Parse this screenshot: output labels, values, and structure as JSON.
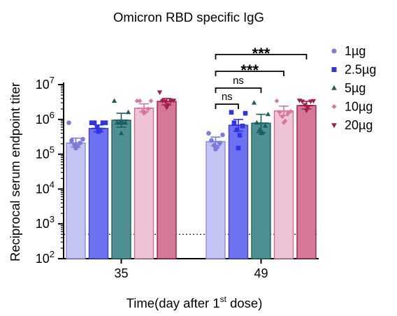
{
  "chart_data": {
    "type": "bar",
    "title": "Omicron RBD specific IgG",
    "xlabel": "Time(day after 1",
    "xlabel_sup": "st",
    "xlabel_tail": " dose)",
    "ylabel": "Reciprocal serum endpoint titer",
    "yscale": "log",
    "ylim": [
      100,
      10000000
    ],
    "yticks": [
      {
        "value": 100,
        "base": "10",
        "exp": "2"
      },
      {
        "value": 1000,
        "base": "10",
        "exp": "3"
      },
      {
        "value": 10000,
        "base": "10",
        "exp": "4"
      },
      {
        "value": 100000,
        "base": "10",
        "exp": "5"
      },
      {
        "value": 1000000,
        "base": "10",
        "exp": "6"
      },
      {
        "value": 10000000,
        "base": "10",
        "exp": "7"
      }
    ],
    "categories": [
      "35",
      "49"
    ],
    "detection_limit": 500,
    "legend_position": "right",
    "series": [
      {
        "name": "1µg",
        "marker": "circle",
        "fill": "#c3c3f4",
        "edge": "#8a8ae6",
        "dot": "#7b7bdc",
        "values": [
          210000,
          230000
        ],
        "err": [
          [
            160000,
            290000
          ],
          [
            175000,
            310000
          ]
        ],
        "points": [
          [
            800000,
            270000,
            250000,
            210000,
            190000,
            170000,
            150000
          ],
          [
            400000,
            360000,
            250000,
            210000,
            180000,
            160000,
            140000
          ]
        ]
      },
      {
        "name": "2.5µg",
        "marker": "square",
        "fill": "#6e72f0",
        "edge": "#3a3ee4",
        "dot": "#3034e6",
        "values": [
          550000,
          680000
        ],
        "err": [
          [
            440000,
            690000
          ],
          [
            460000,
            1000000
          ]
        ],
        "points": [
          [
            800000,
            800000,
            800000,
            800000,
            600000,
            500000,
            450000
          ],
          [
            1600000,
            1500000,
            800000,
            650000,
            500000,
            350000,
            150000
          ]
        ]
      },
      {
        "name": "5µg",
        "marker": "triangle",
        "fill": "#4f9192",
        "edge": "#1f5f60",
        "dot": "#1c5f60",
        "values": [
          950000,
          780000
        ],
        "err": [
          [
            600000,
            1500000
          ],
          [
            420000,
            1400000
          ]
        ],
        "points": [
          [
            3400000,
            1600000,
            800000,
            800000,
            800000,
            800000,
            400000
          ],
          [
            3000000,
            1400000,
            800000,
            650000,
            500000,
            420000,
            400000
          ]
        ]
      },
      {
        "name": "10µg",
        "marker": "diamond",
        "fill": "#eec3d6",
        "edge": "#cc6f96",
        "dot": "#d7759f",
        "values": [
          2100000,
          1750000
        ],
        "err": [
          [
            1650000,
            2800000
          ],
          [
            1300000,
            2400000
          ]
        ],
        "points": [
          [
            3400000,
            3400000,
            3400000,
            2000000,
            1700000,
            1600000,
            1500000
          ],
          [
            3400000,
            1700000,
            1600000,
            1500000,
            1200000,
            900000,
            800000
          ]
        ]
      },
      {
        "name": "20µg",
        "marker": "tri-down",
        "fill": "#d47896",
        "edge": "#9c1f48",
        "dot": "#a01e48",
        "values": [
          3300000,
          2500000
        ],
        "err": [
          [
            2600000,
            4000000
          ],
          [
            2000000,
            3300000
          ]
        ],
        "points": [
          [
            6000000,
            3500000,
            3400000,
            3400000,
            3300000,
            2600000,
            2200000
          ],
          [
            3500000,
            3400000,
            3300000,
            3300000,
            2600000,
            2200000,
            1800000
          ]
        ]
      }
    ],
    "comparisons": [
      {
        "label": "ns",
        "from": "1µg",
        "to": "2.5µg",
        "category": "49"
      },
      {
        "label": "ns",
        "from": "1µg",
        "to": "5µg",
        "category": "49"
      },
      {
        "label": "***",
        "from": "1µg",
        "to": "10µg",
        "category": "49"
      },
      {
        "label": "***",
        "from": "1µg",
        "to": "20µg",
        "category": "49"
      }
    ]
  }
}
